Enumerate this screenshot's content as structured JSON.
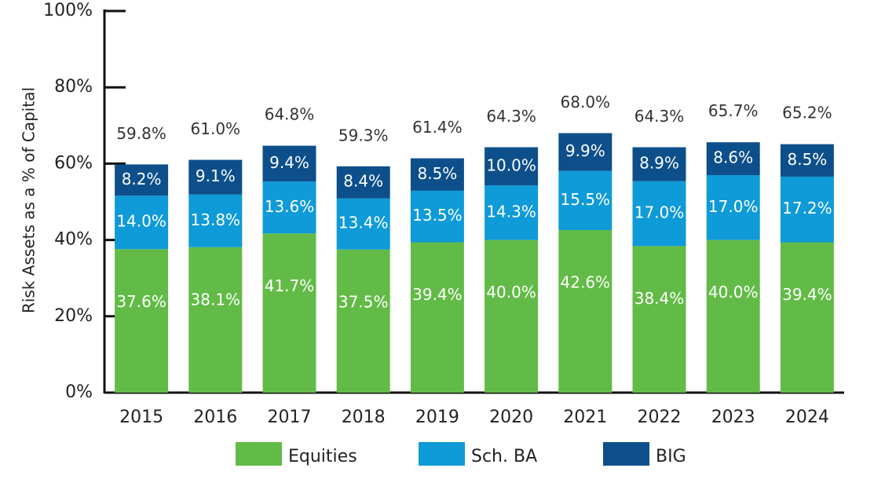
{
  "chart_data": {
    "type": "stacked_bar",
    "y_label": "Risk Assets as a % of Capital",
    "categories": [
      "2015",
      "2016",
      "2017",
      "2018",
      "2019",
      "2020",
      "2021",
      "2022",
      "2023",
      "2024"
    ],
    "series": [
      {
        "name": "Equities",
        "color": "#62bb46",
        "values": [
          37.6,
          38.1,
          41.7,
          37.5,
          39.4,
          40.0,
          42.6,
          38.4,
          40.0,
          39.4
        ],
        "value_labels": [
          "37.6%",
          "38.1%",
          "41.7%",
          "37.5%",
          "39.4%",
          "40.0%",
          "42.6%",
          "38.4%",
          "40.0%",
          "39.4%"
        ]
      },
      {
        "name": "Sch. BA",
        "color": "#0f9ad8",
        "values": [
          14.0,
          13.8,
          13.6,
          13.4,
          13.5,
          14.3,
          15.5,
          17.0,
          17.0,
          17.2
        ],
        "value_labels": [
          "14.0%",
          "13.8%",
          "13.6%",
          "13.4%",
          "13.5%",
          "14.3%",
          "15.5%",
          "17.0%",
          "17.0%",
          "17.2%"
        ]
      },
      {
        "name": "BIG",
        "color": "#0d4f8b",
        "values": [
          8.2,
          9.1,
          9.4,
          8.4,
          8.5,
          10.0,
          9.9,
          8.9,
          8.6,
          8.5
        ],
        "value_labels": [
          "8.2%",
          "9.1%",
          "9.4%",
          "8.4%",
          "8.5%",
          "10.0%",
          "9.9%",
          "8.9%",
          "8.6%",
          "8.5%"
        ]
      }
    ],
    "totals": {
      "values": [
        59.8,
        61.0,
        64.8,
        59.3,
        61.4,
        64.3,
        68.0,
        64.3,
        65.7,
        65.2
      ],
      "value_labels": [
        "59.8%",
        "61.0%",
        "64.8%",
        "59.3%",
        "61.4%",
        "64.3%",
        "68.0%",
        "64.3%",
        "65.7%",
        "65.2%"
      ]
    },
    "ylim": [
      0,
      100
    ],
    "yticks": [
      {
        "value": 0,
        "label": "0%"
      },
      {
        "value": 20,
        "label": "20%"
      },
      {
        "value": 40,
        "label": "40%"
      },
      {
        "value": 60,
        "label": "60%"
      },
      {
        "value": 80,
        "label": "80%"
      },
      {
        "value": 100,
        "label": "100%"
      }
    ],
    "legend": "bottom"
  }
}
